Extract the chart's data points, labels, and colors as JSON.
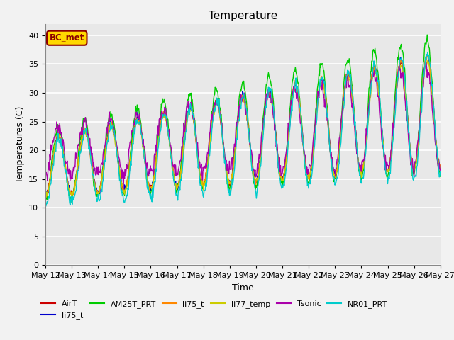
{
  "title": "Temperature",
  "xlabel": "Time",
  "ylabel": "Temperatures (C)",
  "ylim": [
    0,
    42
  ],
  "yticks": [
    0,
    5,
    10,
    15,
    20,
    25,
    30,
    35,
    40
  ],
  "x_tick_labels": [
    "May 12",
    "May 13",
    "May 14",
    "May 15",
    "May 16",
    "May 17",
    "May 18",
    "May 19",
    "May 20",
    "May 21",
    "May 22",
    "May 23",
    "May 24",
    "May 25",
    "May 26",
    "May 27"
  ],
  "annotation_text": "BC_met",
  "annotation_color": "#8B0000",
  "annotation_bg": "#FFD700",
  "series": {
    "AirT": {
      "color": "#CC0000",
      "lw": 1.0
    },
    "li75_t_1": {
      "color": "#0000CC",
      "lw": 1.0
    },
    "AM25T_PRT": {
      "color": "#00CC00",
      "lw": 1.0
    },
    "li75_t_2": {
      "color": "#FF8800",
      "lw": 1.0
    },
    "li77_temp": {
      "color": "#CCCC00",
      "lw": 1.0
    },
    "Tsonic": {
      "color": "#AA00AA",
      "lw": 1.0
    },
    "NR01_PRT": {
      "color": "#00CCCC",
      "lw": 1.0
    }
  },
  "background_color": "#E8E8E8",
  "fig_background": "#F2F2F2",
  "grid_color": "#FFFFFF",
  "title_fontsize": 11,
  "axis_label_fontsize": 9,
  "tick_fontsize": 8
}
